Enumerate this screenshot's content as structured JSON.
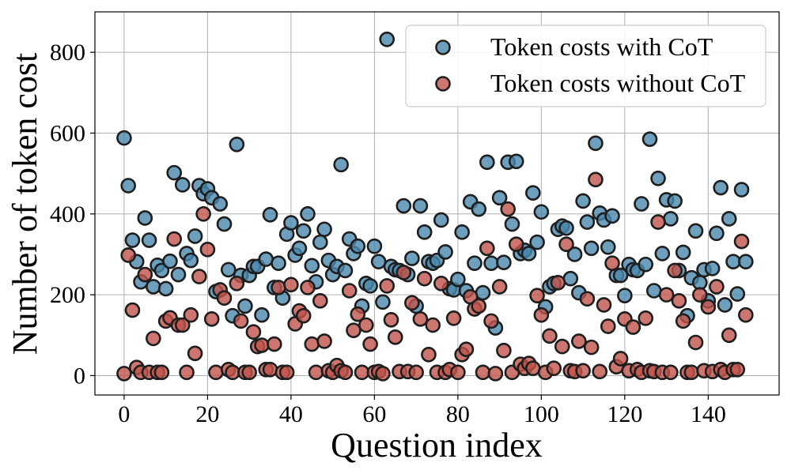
{
  "chart_data": {
    "type": "scatter",
    "title": "",
    "xlabel": "Question index",
    "ylabel": "Number of token cost",
    "xlim": [
      -7,
      157
    ],
    "ylim": [
      -48,
      900
    ],
    "x_ticks": [
      0,
      20,
      40,
      60,
      80,
      100,
      120,
      140
    ],
    "y_ticks": [
      0,
      200,
      400,
      600,
      800
    ],
    "grid": true,
    "legend_position": "top-right",
    "series": [
      {
        "name": "Token costs with CoT",
        "color": "#4a88ae",
        "x": [
          0,
          1,
          2,
          3,
          4,
          5,
          6,
          7,
          8,
          9,
          10,
          11,
          12,
          13,
          14,
          15,
          16,
          17,
          18,
          19,
          20,
          21,
          22,
          23,
          24,
          25,
          26,
          27,
          28,
          29,
          30,
          31,
          32,
          33,
          34,
          35,
          36,
          37,
          38,
          39,
          40,
          41,
          42,
          43,
          44,
          45,
          46,
          47,
          48,
          49,
          50,
          51,
          52,
          53,
          54,
          55,
          56,
          57,
          58,
          59,
          60,
          61,
          62,
          63,
          64,
          65,
          66,
          67,
          68,
          69,
          70,
          71,
          72,
          73,
          74,
          75,
          76,
          77,
          78,
          79,
          80,
          81,
          82,
          83,
          84,
          85,
          86,
          87,
          88,
          89,
          90,
          91,
          92,
          93,
          94,
          95,
          96,
          97,
          98,
          99,
          100,
          101,
          102,
          103,
          104,
          105,
          106,
          107,
          108,
          109,
          110,
          111,
          112,
          113,
          114,
          115,
          116,
          117,
          118,
          119,
          120,
          121,
          122,
          123,
          124,
          125,
          126,
          127,
          128,
          129,
          130,
          131,
          132,
          133,
          134,
          135,
          136,
          137,
          138,
          139,
          140,
          141,
          142,
          143,
          144,
          145,
          146,
          147,
          148,
          149
        ],
        "y": [
          588,
          470,
          335,
          282,
          232,
          390,
          335,
          220,
          273,
          260,
          215,
          283,
          502,
          250,
          472,
          302,
          285,
          345,
          470,
          450,
          462,
          440,
          208,
          425,
          375,
          262,
          148,
          572,
          248,
          172,
          248,
          270,
          270,
          150,
          288,
          398,
          218,
          278,
          192,
          350,
          378,
          298,
          315,
          358,
          400,
          272,
          232,
          330,
          362,
          285,
          250,
          270,
          522,
          260,
          338,
          302,
          320,
          172,
          228,
          222,
          320,
          282,
          182,
          832,
          270,
          262,
          260,
          420,
          250,
          290,
          172,
          420,
          355,
          282,
          278,
          285,
          385,
          306,
          215,
          212,
          238,
          355,
          210,
          430,
          278,
          412,
          205,
          528,
          278,
          118,
          440,
          280,
          528,
          375,
          530,
          302,
          310,
          302,
          452,
          330,
          405,
          170,
          220,
          228,
          362,
          370,
          365,
          240,
          300,
          205,
          432,
          380,
          315,
          575,
          402,
          385,
          318,
          395,
          248,
          248,
          198,
          275,
          262,
          260,
          425,
          275,
          585,
          210,
          488,
          302,
          435,
          388,
          432,
          260,
          305,
          148,
          242,
          358,
          230,
          262,
          185,
          265,
          352,
          465,
          175,
          388,
          282,
          202,
          460,
          282
        ]
      },
      {
        "name": "Token costs without CoT",
        "color": "#c0544b",
        "x": [
          0,
          1,
          2,
          3,
          4,
          5,
          6,
          7,
          8,
          9,
          10,
          11,
          12,
          13,
          14,
          15,
          16,
          17,
          18,
          19,
          20,
          21,
          22,
          23,
          24,
          25,
          26,
          27,
          28,
          29,
          30,
          31,
          32,
          33,
          34,
          35,
          36,
          37,
          38,
          39,
          40,
          41,
          42,
          43,
          44,
          45,
          46,
          47,
          48,
          49,
          50,
          51,
          52,
          53,
          54,
          55,
          56,
          57,
          58,
          59,
          60,
          61,
          62,
          63,
          64,
          65,
          66,
          67,
          68,
          69,
          70,
          71,
          72,
          73,
          74,
          75,
          76,
          77,
          78,
          79,
          80,
          81,
          82,
          83,
          84,
          85,
          86,
          87,
          88,
          89,
          90,
          91,
          92,
          93,
          94,
          95,
          96,
          97,
          98,
          99,
          100,
          101,
          102,
          103,
          104,
          105,
          106,
          107,
          108,
          109,
          110,
          111,
          112,
          113,
          114,
          115,
          116,
          117,
          118,
          119,
          120,
          121,
          122,
          123,
          124,
          125,
          126,
          127,
          128,
          129,
          130,
          131,
          132,
          133,
          134,
          135,
          136,
          137,
          138,
          139,
          140,
          141,
          142,
          143,
          144,
          145,
          146,
          147,
          148,
          149
        ],
        "y": [
          5,
          298,
          162,
          20,
          8,
          250,
          8,
          92,
          8,
          8,
          135,
          143,
          338,
          125,
          125,
          8,
          150,
          55,
          245,
          400,
          312,
          140,
          8,
          212,
          192,
          15,
          8,
          228,
          135,
          8,
          8,
          108,
          72,
          75,
          15,
          15,
          78,
          218,
          8,
          8,
          225,
          128,
          160,
          148,
          218,
          78,
          8,
          185,
          85,
          12,
          8,
          25,
          12,
          8,
          210,
          112,
          152,
          8,
          125,
          78,
          8,
          10,
          5,
          222,
          138,
          95,
          10,
          255,
          10,
          180,
          8,
          140,
          240,
          52,
          125,
          8,
          228,
          8,
          15,
          142,
          8,
          52,
          65,
          195,
          165,
          172,
          8,
          315,
          135,
          5,
          220,
          62,
          412,
          8,
          325,
          28,
          18,
          30,
          18,
          198,
          150,
          8,
          98,
          18,
          230,
          72,
          325,
          12,
          10,
          85,
          12,
          190,
          70,
          485,
          10,
          175,
          122,
          278,
          22,
          42,
          140,
          12,
          120,
          15,
          8,
          142,
          12,
          10,
          380,
          8,
          200,
          8,
          260,
          185,
          135,
          8,
          8,
          82,
          200,
          12,
          170,
          10,
          220,
          15,
          8,
          100,
          15,
          15,
          332,
          150
        ]
      }
    ]
  }
}
